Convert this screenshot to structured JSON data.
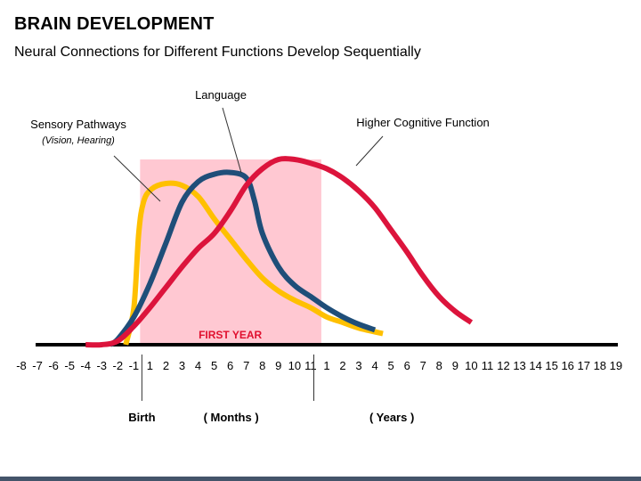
{
  "title": "BRAIN DEVELOPMENT",
  "subtitle": "Neural Connections for Different Functions Develop Sequentially",
  "colors": {
    "sensory": "#FFC000",
    "language": "#1F4E79",
    "cognitive": "#DC143C",
    "first_year_band": "#FFC8D2",
    "first_year_text": "#E0102F",
    "axis": "#000000",
    "bottom_bar": "#44546A"
  },
  "chart_data": {
    "type": "line",
    "x_ticks": [
      "-8",
      "-7",
      "-6",
      "-5",
      "-4",
      "-3",
      "-2",
      "-1",
      "1",
      "2",
      "3",
      "4",
      "5",
      "6",
      "7",
      "8",
      "9",
      "10",
      "11",
      "1",
      "2",
      "3",
      "4",
      "5",
      "6",
      "7",
      "8",
      "9",
      "10",
      "11",
      "12",
      "13",
      "14",
      "15",
      "16",
      "17",
      "18",
      "19"
    ],
    "y_axis": "none",
    "band": {
      "label": "FIRST YEAR",
      "from_tick": 7,
      "to_tick": 18
    },
    "markers": [
      {
        "label": "Birth",
        "tick": 7.5
      },
      {
        "label": "( Months )",
        "tick": 12.5
      },
      {
        "label": "( Years )",
        "tick": 22.5
      }
    ],
    "series": [
      {
        "name": "Sensory Pathways",
        "note": "(Vision, Hearing)",
        "color_key": "sensory",
        "points": [
          [
            6.5,
            0
          ],
          [
            7,
            0.2
          ],
          [
            7.3,
            0.6
          ],
          [
            7.6,
            0.77
          ],
          [
            8.1,
            0.84
          ],
          [
            9,
            0.87
          ],
          [
            10,
            0.86
          ],
          [
            11,
            0.8
          ],
          [
            12,
            0.68
          ],
          [
            13,
            0.57
          ],
          [
            14,
            0.46
          ],
          [
            15,
            0.36
          ],
          [
            16,
            0.29
          ],
          [
            17,
            0.24
          ],
          [
            18,
            0.2
          ],
          [
            19,
            0.15
          ],
          [
            20,
            0.12
          ],
          [
            21,
            0.09
          ],
          [
            22.5,
            0.06
          ]
        ]
      },
      {
        "name": "Language",
        "color_key": "language",
        "points": [
          [
            5.5,
            0
          ],
          [
            6,
            0.03
          ],
          [
            7,
            0.15
          ],
          [
            8,
            0.33
          ],
          [
            9,
            0.55
          ],
          [
            10,
            0.77
          ],
          [
            11,
            0.88
          ],
          [
            12,
            0.92
          ],
          [
            13,
            0.93
          ],
          [
            14,
            0.9
          ],
          [
            14.5,
            0.78
          ],
          [
            15,
            0.6
          ],
          [
            16,
            0.42
          ],
          [
            17,
            0.32
          ],
          [
            18,
            0.26
          ],
          [
            19,
            0.2
          ],
          [
            20,
            0.15
          ],
          [
            21,
            0.11
          ],
          [
            22,
            0.08
          ]
        ]
      },
      {
        "name": "Higher Cognitive Function",
        "color_key": "cognitive",
        "points": [
          [
            4,
            0
          ],
          [
            5,
            0
          ],
          [
            6,
            0.02
          ],
          [
            7,
            0.1
          ],
          [
            8,
            0.2
          ],
          [
            9,
            0.31
          ],
          [
            10,
            0.42
          ],
          [
            11,
            0.52
          ],
          [
            12,
            0.6
          ],
          [
            13,
            0.72
          ],
          [
            14,
            0.86
          ],
          [
            15,
            0.95
          ],
          [
            16,
            1.0
          ],
          [
            17,
            1.0
          ],
          [
            18,
            0.98
          ],
          [
            19,
            0.95
          ],
          [
            20,
            0.9
          ],
          [
            21,
            0.83
          ],
          [
            22,
            0.74
          ],
          [
            23,
            0.62
          ],
          [
            24,
            0.5
          ],
          [
            25,
            0.37
          ],
          [
            26,
            0.26
          ],
          [
            27,
            0.18
          ],
          [
            28,
            0.12
          ]
        ]
      }
    ]
  }
}
